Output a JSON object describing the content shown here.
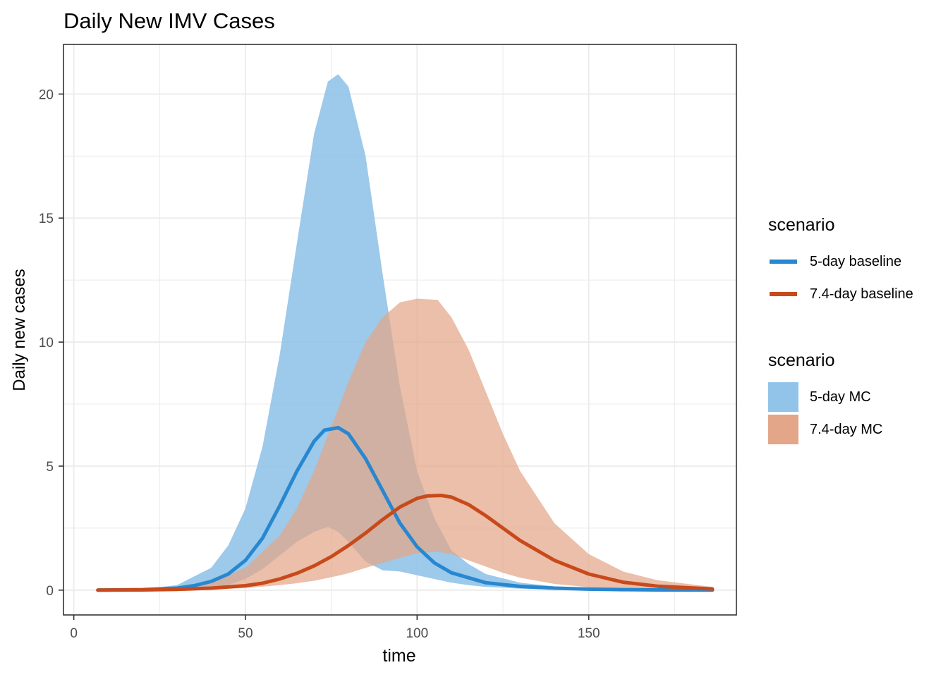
{
  "chart_data": {
    "type": "area",
    "title": "Daily New IMV Cases",
    "xlabel": "time",
    "ylabel": "Daily new cases",
    "xlim": [
      -3,
      193
    ],
    "ylim": [
      -1,
      22
    ],
    "x_ticks": [
      0,
      50,
      100,
      150
    ],
    "y_ticks": [
      0,
      5,
      10,
      15,
      20
    ],
    "grid": true,
    "legend_position": "right",
    "line_legend_title": "scenario",
    "fill_legend_title": "scenario",
    "colors": {
      "line_5day": "#2787d0",
      "line_74day": "#c84a1b",
      "fill_5day": "#92c3e8",
      "fill_74day": "#e3a688",
      "grid": "#ebebeb"
    },
    "series": [
      {
        "name": "5-day baseline",
        "kind": "line",
        "x": [
          7,
          20,
          30,
          35,
          40,
          45,
          50,
          55,
          60,
          65,
          70,
          73,
          77,
          80,
          85,
          90,
          95,
          100,
          105,
          110,
          120,
          130,
          140,
          150,
          160,
          170,
          186
        ],
        "y": [
          0,
          0.02,
          0.08,
          0.18,
          0.35,
          0.65,
          1.2,
          2.1,
          3.4,
          4.8,
          6.0,
          6.45,
          6.55,
          6.3,
          5.3,
          4.0,
          2.7,
          1.75,
          1.1,
          0.7,
          0.3,
          0.15,
          0.08,
          0.04,
          0.02,
          0.01,
          0
        ]
      },
      {
        "name": "7.4-day baseline",
        "kind": "line",
        "x": [
          7,
          20,
          30,
          40,
          50,
          55,
          60,
          65,
          70,
          75,
          80,
          85,
          90,
          95,
          100,
          103,
          107,
          110,
          115,
          120,
          125,
          130,
          140,
          150,
          160,
          170,
          186
        ],
        "y": [
          0,
          0.01,
          0.03,
          0.08,
          0.18,
          0.28,
          0.45,
          0.68,
          0.98,
          1.35,
          1.8,
          2.3,
          2.85,
          3.35,
          3.7,
          3.8,
          3.82,
          3.75,
          3.45,
          3.0,
          2.5,
          2.0,
          1.2,
          0.65,
          0.32,
          0.16,
          0.05
        ]
      },
      {
        "name": "5-day MC",
        "kind": "ribbon",
        "x": [
          7,
          20,
          30,
          40,
          45,
          50,
          55,
          60,
          65,
          70,
          74,
          77,
          80,
          85,
          90,
          95,
          100,
          105,
          110,
          115,
          120,
          130,
          140,
          150,
          160,
          170,
          186
        ],
        "ymin": [
          0,
          0,
          0.02,
          0.1,
          0.22,
          0.45,
          0.85,
          1.4,
          1.95,
          2.35,
          2.55,
          2.35,
          1.95,
          1.15,
          0.8,
          0.75,
          0.6,
          0.45,
          0.3,
          0.2,
          0.13,
          0.06,
          0.03,
          0.015,
          0.01,
          0,
          0
        ],
        "ymax": [
          0,
          0.04,
          0.2,
          0.9,
          1.8,
          3.3,
          5.8,
          9.5,
          14.0,
          18.4,
          20.5,
          20.8,
          20.3,
          17.5,
          12.7,
          8.2,
          4.8,
          2.9,
          1.6,
          1.05,
          0.65,
          0.3,
          0.15,
          0.08,
          0.04,
          0.02,
          0
        ]
      },
      {
        "name": "7.4-day MC",
        "kind": "ribbon",
        "x": [
          7,
          20,
          30,
          40,
          50,
          60,
          65,
          70,
          75,
          77,
          80,
          85,
          90,
          95,
          100,
          106,
          110,
          115,
          120,
          125,
          130,
          140,
          150,
          160,
          170,
          186
        ],
        "ymin": [
          0,
          0,
          0.01,
          0.03,
          0.08,
          0.2,
          0.28,
          0.38,
          0.52,
          0.58,
          0.68,
          0.9,
          1.1,
          1.3,
          1.5,
          1.55,
          1.45,
          1.2,
          0.95,
          0.7,
          0.5,
          0.25,
          0.12,
          0.06,
          0.03,
          0.01
        ],
        "ymax": [
          0,
          0.02,
          0.08,
          0.3,
          0.9,
          2.2,
          3.3,
          4.8,
          6.6,
          7.3,
          8.4,
          10.0,
          11.0,
          11.6,
          11.75,
          11.7,
          11.0,
          9.7,
          8.0,
          6.3,
          4.8,
          2.7,
          1.45,
          0.75,
          0.4,
          0.13
        ]
      }
    ]
  }
}
